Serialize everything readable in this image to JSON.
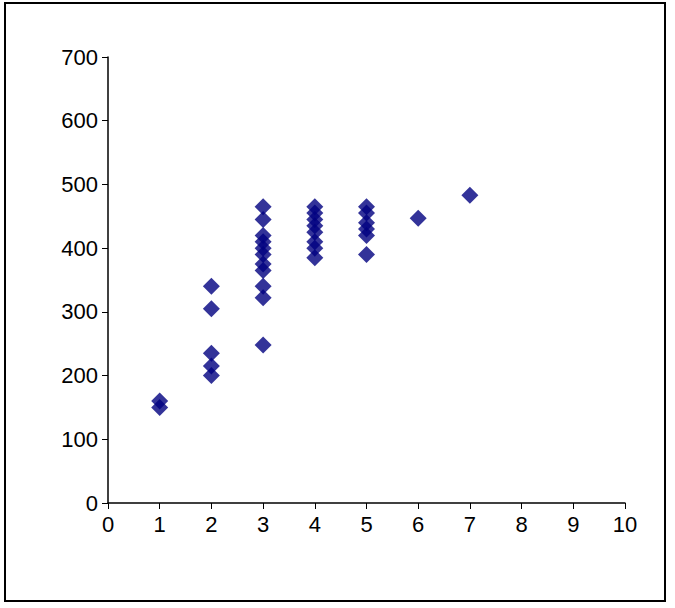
{
  "chart_data": {
    "type": "scatter",
    "x": [
      1,
      1,
      2,
      2,
      2,
      2,
      2,
      3,
      3,
      3,
      3,
      3,
      3,
      3,
      3,
      3,
      3,
      3,
      4,
      4,
      4,
      4,
      4,
      4,
      4,
      4,
      5,
      5,
      5,
      5,
      5,
      5,
      6,
      7
    ],
    "values": [
      150,
      160,
      200,
      215,
      235,
      305,
      340,
      248,
      322,
      340,
      365,
      375,
      390,
      400,
      410,
      420,
      445,
      465,
      385,
      400,
      410,
      425,
      435,
      445,
      455,
      465,
      390,
      420,
      430,
      440,
      455,
      465,
      447,
      483
    ],
    "color": "#000080",
    "marker": "diamond",
    "xlim": [
      0,
      10
    ],
    "xticks": [
      0,
      1,
      2,
      3,
      4,
      5,
      6,
      7,
      8,
      9,
      10
    ],
    "ylim": [
      0,
      700
    ],
    "yticks": [
      0,
      100,
      200,
      300,
      400,
      500,
      600,
      700
    ],
    "grid": false
  }
}
